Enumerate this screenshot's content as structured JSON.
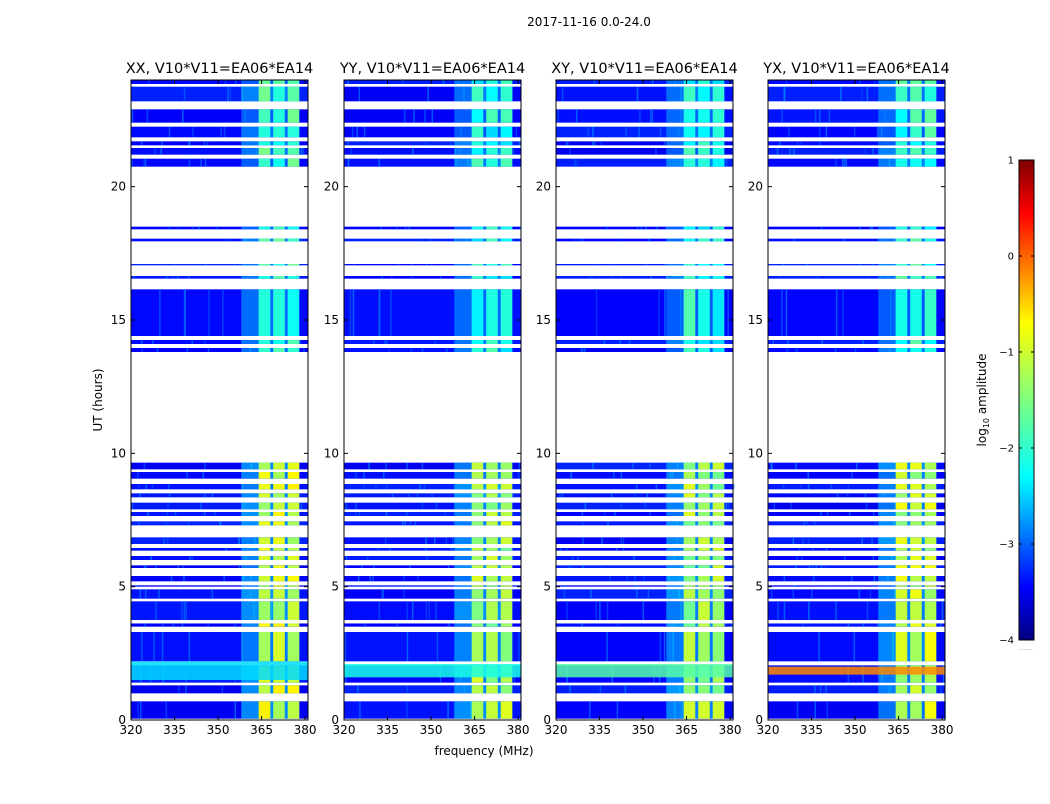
{
  "chart_data": {
    "type": "heatmap",
    "title": "2017-11-16 0.0-24.0",
    "xlabel": "frequency (MHz)",
    "ylabel": "UT (hours)",
    "xlim": [
      320,
      381
    ],
    "ylim": [
      0,
      24
    ],
    "xticks": [
      320,
      335,
      350,
      365,
      380
    ],
    "yticks": [
      0,
      5,
      10,
      15,
      20
    ],
    "colormap": "jet",
    "colorbar": {
      "label_prefix": "log",
      "label_sub": "10",
      "label_suffix": " amplitude",
      "range": [
        -4,
        1
      ],
      "ticks": [
        1,
        0,
        -1,
        -2,
        -3,
        -4
      ],
      "tick_labels": [
        "1",
        "0",
        "−1",
        "−2",
        "−3",
        "−4"
      ],
      "footer": "……"
    },
    "rfi_band_mhz": [
      358,
      378
    ],
    "bright_subbands_mhz": [
      [
        364,
        368
      ],
      [
        369,
        373
      ],
      [
        374,
        378
      ]
    ],
    "data_hour_ranges": [
      [
        0.05,
        0.7
      ],
      [
        1.0,
        1.3
      ],
      [
        1.4,
        2.05
      ],
      [
        2.2,
        3.3
      ],
      [
        3.5,
        3.62
      ],
      [
        3.75,
        4.45
      ],
      [
        4.55,
        4.9
      ],
      [
        5.0,
        5.05
      ],
      [
        5.2,
        5.4
      ],
      [
        5.7,
        5.8
      ],
      [
        6.0,
        6.15
      ],
      [
        6.35,
        6.45
      ],
      [
        6.6,
        6.85
      ],
      [
        7.3,
        7.45
      ],
      [
        7.65,
        7.8
      ],
      [
        7.9,
        8.15
      ],
      [
        8.35,
        8.5
      ],
      [
        8.65,
        8.85
      ],
      [
        9.05,
        9.3
      ],
      [
        9.4,
        9.65
      ],
      [
        13.8,
        13.95
      ],
      [
        14.1,
        14.25
      ],
      [
        14.4,
        16.15
      ],
      [
        16.55,
        16.65
      ],
      [
        17.05,
        17.1
      ],
      [
        17.95,
        18.05
      ],
      [
        18.4,
        18.5
      ],
      [
        20.75,
        21.05
      ],
      [
        21.2,
        21.45
      ],
      [
        21.55,
        21.7
      ],
      [
        21.85,
        22.25
      ],
      [
        22.4,
        22.9
      ],
      [
        23.2,
        23.75
      ],
      [
        23.85,
        24.0
      ]
    ],
    "panels": [
      {
        "name": "XX",
        "title": "XX, V10*V11=EA06*EA14",
        "level_lowtime": -1.1,
        "level_daytime": -1.8,
        "band_lowtime_hours": [
          1.5,
          2.2
        ],
        "band_lowtime_level": -2.3
      },
      {
        "name": "YY",
        "title": "YY, V10*V11=EA06*EA14",
        "level_lowtime": -1.3,
        "level_daytime": -2.0,
        "band_lowtime_hours": [
          1.6,
          2.1
        ],
        "band_lowtime_level": -2.0
      },
      {
        "name": "XY",
        "title": "XY, V10*V11=EA06*EA14",
        "level_lowtime": -1.3,
        "level_daytime": -2.0,
        "band_lowtime_hours": [
          1.6,
          2.1
        ],
        "band_lowtime_level": -1.7
      },
      {
        "name": "YX",
        "title": "YX, V10*V11=EA06*EA14",
        "level_lowtime": -1.2,
        "level_daytime": -1.9,
        "band_lowtime_hours": [
          1.7,
          2.0
        ],
        "band_lowtime_level": -0.3
      }
    ]
  }
}
